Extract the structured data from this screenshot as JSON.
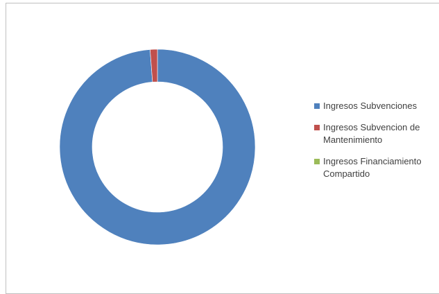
{
  "chart_data": {
    "type": "pie",
    "style": "donut",
    "legend_position": "right",
    "series": [
      {
        "name": "Ingresos Subvenciones",
        "value": 98.8,
        "color": "#4F81BD"
      },
      {
        "name": "Ingresos Subvencion de Mantenimiento",
        "value": 1.2,
        "color": "#C0504D"
      },
      {
        "name": "Ingresos Financiamiento Compartido",
        "value": 0,
        "color": "#9BBB59"
      }
    ]
  },
  "legend": {
    "items": [
      {
        "label": "Ingresos Subvenciones",
        "color": "#4F81BD"
      },
      {
        "label": "Ingresos Subvencion de Mantenimiento",
        "color": "#C0504D"
      },
      {
        "label": "Ingresos Financiamiento Compartido",
        "color": "#9BBB59"
      }
    ]
  }
}
